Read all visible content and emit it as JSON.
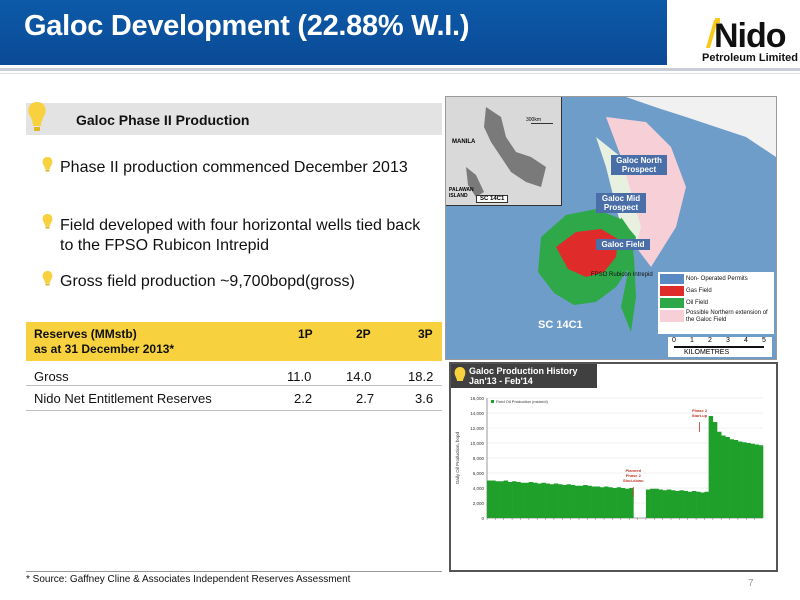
{
  "header": {
    "title": "Galoc Development (22.88% W.I.)",
    "logo_word": "Nido",
    "logo_sub": "Petroleum Limited"
  },
  "section": {
    "title": "Galoc Phase II Production"
  },
  "bullets": [
    "Phase II production commenced December 2013",
    "Field developed with four horizontal wells tied back to the FPSO Rubicon Intrepid",
    "Gross field production ~9,700bopd(gross)"
  ],
  "reserves": {
    "header_line1": "Reserves (MMstb)",
    "header_line2": "as at 31 December 2013*",
    "cols": [
      "1P",
      "2P",
      "3P"
    ],
    "rows": [
      {
        "label": "Gross",
        "values": [
          "11.0",
          "14.0",
          "18.2"
        ]
      },
      {
        "label": "Nido Net Entitlement Reserves",
        "values": [
          "2.2",
          "2.7",
          "3.6"
        ]
      }
    ]
  },
  "map": {
    "inset_labels": {
      "manila": "MANILA",
      "palawan": "PALAWAN ISLAND",
      "sc": "SC 14C1",
      "scale": "300km"
    },
    "prospects": [
      "Galoc North Prospect",
      "Galoc Mid Prospect",
      "Galoc Field"
    ],
    "fpso_label": "FPSO Rubicon Intrepid",
    "block_label": "SC 14C1",
    "legend": [
      {
        "label": "Non- Operated Permits",
        "color": "#5b89c4"
      },
      {
        "label": "Gas Field",
        "color": "#e02b2b"
      },
      {
        "label": "Oil Field",
        "color": "#2fa84a"
      },
      {
        "label": "Possible Northern extension of the Galoc Field",
        "color": "#f7cfd6"
      }
    ],
    "scale_ticks": [
      "0",
      "1",
      "2",
      "3",
      "4",
      "5"
    ],
    "scale_unit": "KILOMETRES"
  },
  "chart_panel": {
    "title_line1": "Galoc Production History",
    "title_line2": "Jan'13 - Feb'14"
  },
  "chart_data": {
    "type": "area",
    "title": "",
    "ylabel": "Daily Oil Production, bopd",
    "xlabel": "",
    "series_name": "Field Oil Production (mstm/d)",
    "ylim": [
      0,
      16000
    ],
    "yticks": [
      "0",
      "2,000",
      "4,000",
      "6,000",
      "8,000",
      "10,000",
      "12,000",
      "14,000",
      "16,000"
    ],
    "annotations": [
      {
        "text": "Planned Phase 2 Shut-down",
        "at_fraction": 0.53
      },
      {
        "text": "Phase 2 Start-up",
        "at_fraction": 0.77
      }
    ],
    "values": [
      5000,
      5000,
      4900,
      4900,
      5000,
      4800,
      4900,
      4800,
      4700,
      4700,
      4800,
      4700,
      4600,
      4700,
      4600,
      4500,
      4600,
      4500,
      4400,
      4500,
      4400,
      4300,
      4300,
      4400,
      4300,
      4200,
      4200,
      4100,
      4200,
      4100,
      4000,
      4100,
      4000,
      3900,
      4000,
      0,
      0,
      0,
      3800,
      3900,
      3900,
      3800,
      3700,
      3800,
      3700,
      3600,
      3700,
      3600,
      3500,
      3600,
      3500,
      3400,
      3500,
      13600,
      12800,
      11500,
      11000,
      10800,
      10500,
      10400,
      10200,
      10100,
      10000,
      9900,
      9800,
      9700
    ]
  },
  "footnote": "* Source: Gaffney Cline & Associates Independent Reserves Assessment",
  "page_number": "7"
}
